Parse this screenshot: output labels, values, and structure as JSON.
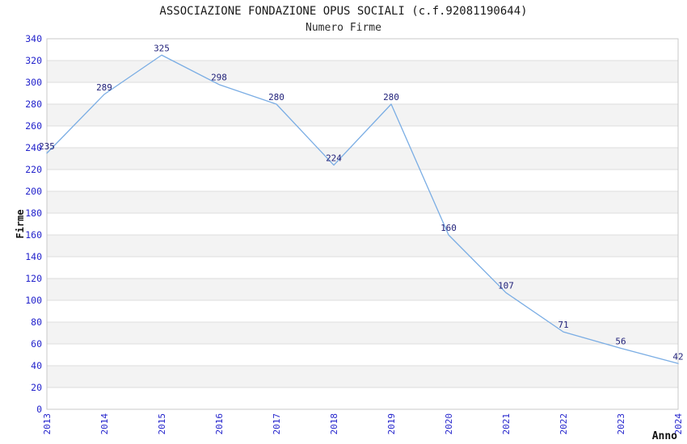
{
  "chart_data": {
    "type": "line",
    "title": "ASSOCIAZIONE FONDAZIONE OPUS SOCIALI (c.f.92081190644)",
    "subtitle": "Numero Firme",
    "xlabel": "Anno",
    "ylabel": "Firme",
    "categories": [
      "2013",
      "2014",
      "2015",
      "2016",
      "2017",
      "2018",
      "2019",
      "2020",
      "2021",
      "2022",
      "2023",
      "2024"
    ],
    "values": [
      235,
      289,
      325,
      298,
      280,
      224,
      280,
      160,
      107,
      71,
      56,
      42
    ],
    "ylim": [
      0,
      340
    ],
    "ytick_step": 20,
    "grid": true,
    "legend": "none",
    "data_labels_shown": true,
    "x_labels_rotated_degrees": -90,
    "colors": {
      "line": "#7aade4",
      "tick_label": "#2424cc",
      "data_label": "#22227a",
      "axis_label": "#111111",
      "band": "#f3f3f3",
      "band_alt": "#ffffff",
      "grid_line": "#dcdcdc",
      "plot_border": "#c9c9c9",
      "background": "#ffffff"
    }
  }
}
